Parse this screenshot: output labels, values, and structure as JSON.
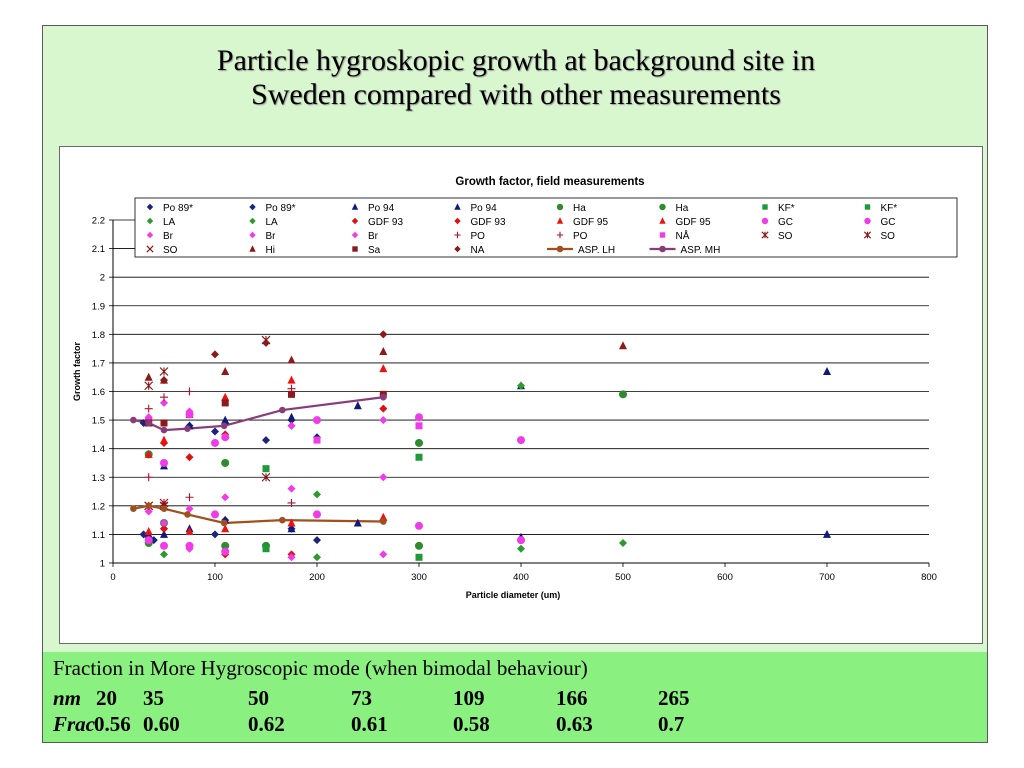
{
  "slide": {
    "title_lines": [
      "Particle hygroskopic growth at background site in",
      "Sweden compared with other measurements"
    ],
    "fraction_title": "Fraction in More Hygroscopic mode (when bimodal behaviour)",
    "nm_label": "nm",
    "frac_label": "Frac",
    "nm_values": [
      "20",
      "35",
      "50",
      "73",
      "109",
      "166",
      "265"
    ],
    "frac_values": [
      "0.56",
      "0.60",
      "0.62",
      "0.61",
      "0.58",
      "0.63",
      "0.7"
    ]
  },
  "chart_data": {
    "type": "scatter",
    "title": "Growth factor, field measurements",
    "xlabel": "Particle diameter (um)",
    "ylabel": "Growth factor",
    "xlim": [
      0,
      800
    ],
    "ylim": [
      1,
      2.2
    ],
    "xticks": [
      "0",
      "100",
      "200",
      "300",
      "400",
      "500",
      "600",
      "700",
      "800"
    ],
    "yticks": [
      "1",
      "1.1",
      "1.2",
      "1.3",
      "1.4",
      "1.5",
      "1.6",
      "1.7",
      "1.8",
      "1.9",
      "2",
      "2.1",
      "2.2"
    ],
    "grid": "horizontal",
    "legend_placement": "top",
    "series": [
      {
        "name": "Po 89*",
        "marker": "diamond",
        "color": "#1a237e",
        "points": [
          [
            30,
            1.1
          ],
          [
            40,
            1.08
          ],
          [
            50,
            1.12
          ],
          [
            100,
            1.1
          ],
          [
            110,
            1.15
          ],
          [
            150,
            1.06
          ],
          [
            175,
            1.12
          ],
          [
            200,
            1.08
          ]
        ]
      },
      {
        "name": "Po 89*",
        "marker": "diamond",
        "color": "#1a237e",
        "points": [
          [
            30,
            1.49
          ],
          [
            50,
            1.35
          ],
          [
            75,
            1.48
          ],
          [
            100,
            1.46
          ],
          [
            110,
            1.49
          ],
          [
            150,
            1.43
          ],
          [
            175,
            1.5
          ],
          [
            200,
            1.44
          ]
        ]
      },
      {
        "name": "Po 94",
        "marker": "triangle",
        "color": "#0d1a7a",
        "points": [
          [
            35,
            1.1
          ],
          [
            50,
            1.1
          ],
          [
            75,
            1.12
          ],
          [
            110,
            1.15
          ],
          [
            175,
            1.12
          ],
          [
            240,
            1.14
          ],
          [
            400,
            1.09
          ],
          [
            700,
            1.1
          ]
        ]
      },
      {
        "name": "Po 94",
        "marker": "triangle",
        "color": "#0d1a7a",
        "points": [
          [
            35,
            1.49
          ],
          [
            50,
            1.34
          ],
          [
            75,
            1.48
          ],
          [
            110,
            1.5
          ],
          [
            175,
            1.51
          ],
          [
            240,
            1.55
          ],
          [
            400,
            1.62
          ],
          [
            700,
            1.67
          ]
        ]
      },
      {
        "name": "Ha",
        "marker": "circle",
        "color": "#2e8b2e",
        "points": [
          [
            35,
            1.07
          ],
          [
            50,
            1.14
          ],
          [
            110,
            1.06
          ],
          [
            150,
            1.06
          ],
          [
            300,
            1.06
          ]
        ]
      },
      {
        "name": "Ha",
        "marker": "circle",
        "color": "#2e8b2e",
        "points": [
          [
            35,
            1.38
          ],
          [
            110,
            1.35
          ],
          [
            300,
            1.42
          ],
          [
            500,
            1.59
          ]
        ]
      },
      {
        "name": "KF*",
        "marker": "square",
        "color": "#1e9a3a",
        "points": [
          [
            150,
            1.05
          ],
          [
            300,
            1.02
          ]
        ]
      },
      {
        "name": "KF*",
        "marker": "square",
        "color": "#1e9a3a",
        "points": [
          [
            150,
            1.33
          ],
          [
            300,
            1.37
          ]
        ]
      },
      {
        "name": "LA",
        "marker": "diamond",
        "color": "#2e9a2e",
        "points": [
          [
            50,
            1.03
          ],
          [
            200,
            1.02
          ],
          [
            400,
            1.05
          ],
          [
            500,
            1.07
          ]
        ]
      },
      {
        "name": "LA",
        "marker": "diamond",
        "color": "#2e9a2e",
        "points": [
          [
            200,
            1.24
          ],
          [
            400,
            1.62
          ]
        ]
      },
      {
        "name": "GDF 93",
        "marker": "diamond",
        "color": "#e01010",
        "points": [
          [
            50,
            1.12
          ],
          [
            75,
            1.06
          ],
          [
            110,
            1.03
          ],
          [
            175,
            1.03
          ],
          [
            265,
            1.15
          ]
        ]
      },
      {
        "name": "GDF 93",
        "marker": "diamond",
        "color": "#e01010",
        "points": [
          [
            50,
            1.42
          ],
          [
            75,
            1.37
          ],
          [
            110,
            1.45
          ],
          [
            175,
            1.48
          ],
          [
            265,
            1.54
          ]
        ]
      },
      {
        "name": "GDF 95",
        "marker": "triangle",
        "color": "#ee1111",
        "points": [
          [
            35,
            1.11
          ],
          [
            75,
            1.11
          ],
          [
            110,
            1.12
          ],
          [
            175,
            1.14
          ],
          [
            265,
            1.16
          ]
        ]
      },
      {
        "name": "GDF 95",
        "marker": "triangle",
        "color": "#ee1111",
        "points": [
          [
            35,
            1.38
          ],
          [
            50,
            1.43
          ],
          [
            75,
            1.52
          ],
          [
            110,
            1.58
          ],
          [
            175,
            1.64
          ],
          [
            265,
            1.68
          ]
        ]
      },
      {
        "name": "GC",
        "marker": "circle",
        "color": "#f03ce8",
        "points": [
          [
            35,
            1.08
          ],
          [
            50,
            1.06
          ],
          [
            75,
            1.06
          ],
          [
            100,
            1.17
          ],
          [
            110,
            1.04
          ],
          [
            200,
            1.17
          ],
          [
            300,
            1.13
          ],
          [
            400,
            1.08
          ]
        ]
      },
      {
        "name": "GC",
        "marker": "circle",
        "color": "#f03ce8",
        "points": [
          [
            35,
            1.5
          ],
          [
            50,
            1.35
          ],
          [
            75,
            1.52
          ],
          [
            100,
            1.42
          ],
          [
            110,
            1.44
          ],
          [
            200,
            1.5
          ],
          [
            300,
            1.51
          ],
          [
            400,
            1.43
          ]
        ]
      },
      {
        "name": "Br",
        "marker": "diamond",
        "color": "#f03ce8",
        "points": [
          [
            35,
            1.18
          ],
          [
            50,
            1.14
          ],
          [
            75,
            1.05
          ],
          [
            110,
            1.23
          ],
          [
            175,
            1.26
          ],
          [
            265,
            1.03
          ]
        ]
      },
      {
        "name": "Br",
        "marker": "diamond",
        "color": "#f03ce8",
        "points": [
          [
            35,
            1.51
          ],
          [
            50,
            1.56
          ],
          [
            75,
            1.53
          ],
          [
            110,
            1.44
          ],
          [
            175,
            1.48
          ],
          [
            265,
            1.5
          ]
        ]
      },
      {
        "name": "Br",
        "marker": "diamond",
        "color": "#f03ce8",
        "points": [
          [
            50,
            1.06
          ],
          [
            75,
            1.19
          ],
          [
            175,
            1.02
          ],
          [
            265,
            1.3
          ]
        ]
      },
      {
        "name": "PO",
        "marker": "plus",
        "color": "#b01030",
        "points": [
          [
            35,
            1.3
          ],
          [
            50,
            1.21
          ],
          [
            75,
            1.23
          ],
          [
            175,
            1.21
          ]
        ]
      },
      {
        "name": "PO",
        "marker": "plus",
        "color": "#b01030",
        "points": [
          [
            35,
            1.54
          ],
          [
            50,
            1.58
          ],
          [
            75,
            1.6
          ],
          [
            175,
            1.61
          ]
        ]
      },
      {
        "name": "NÅ",
        "marker": "square",
        "color": "#f03ce8",
        "points": [
          [
            200,
            1.43
          ],
          [
            300,
            1.48
          ]
        ]
      },
      {
        "name": "SO",
        "marker": "star",
        "color": "#8b1010",
        "points": [
          [
            35,
            1.2
          ],
          [
            50,
            1.2
          ],
          [
            150,
            1.3
          ]
        ]
      },
      {
        "name": "SO",
        "marker": "star",
        "color": "#8b1010",
        "points": [
          [
            35,
            1.62
          ],
          [
            50,
            1.67
          ],
          [
            150,
            1.78
          ]
        ]
      },
      {
        "name": "SO",
        "marker": "x",
        "color": "#8b1010",
        "points": [
          [
            35,
            1.2
          ],
          [
            50,
            1.21
          ]
        ]
      },
      {
        "name": "Hi",
        "marker": "triangle",
        "color": "#8b1a1a",
        "points": [
          [
            35,
            1.65
          ],
          [
            50,
            1.64
          ],
          [
            110,
            1.67
          ],
          [
            175,
            1.71
          ],
          [
            265,
            1.74
          ],
          [
            500,
            1.76
          ]
        ]
      },
      {
        "name": "Sa",
        "marker": "square",
        "color": "#8b1a1a",
        "points": [
          [
            35,
            1.49
          ],
          [
            50,
            1.49
          ],
          [
            110,
            1.56
          ],
          [
            175,
            1.59
          ],
          [
            265,
            1.59
          ]
        ]
      },
      {
        "name": "NA",
        "marker": "diamond",
        "color": "#8b1a1a",
        "points": [
          [
            50,
            1.64
          ],
          [
            100,
            1.73
          ],
          [
            150,
            1.77
          ],
          [
            265,
            1.8
          ]
        ]
      },
      {
        "name": "ASP. LH",
        "marker": "circle",
        "line": true,
        "color": "#a0501c",
        "points": [
          [
            20,
            1.19
          ],
          [
            35,
            1.2
          ],
          [
            50,
            1.19
          ],
          [
            73,
            1.17
          ],
          [
            109,
            1.14
          ],
          [
            166,
            1.15
          ],
          [
            265,
            1.145
          ]
        ]
      },
      {
        "name": "ASP. MH",
        "marker": "circle",
        "line": true,
        "color": "#8a3c7a",
        "points": [
          [
            20,
            1.5
          ],
          [
            35,
            1.49
          ],
          [
            50,
            1.465
          ],
          [
            73,
            1.47
          ],
          [
            109,
            1.48
          ],
          [
            166,
            1.535
          ],
          [
            265,
            1.58
          ]
        ]
      }
    ]
  }
}
